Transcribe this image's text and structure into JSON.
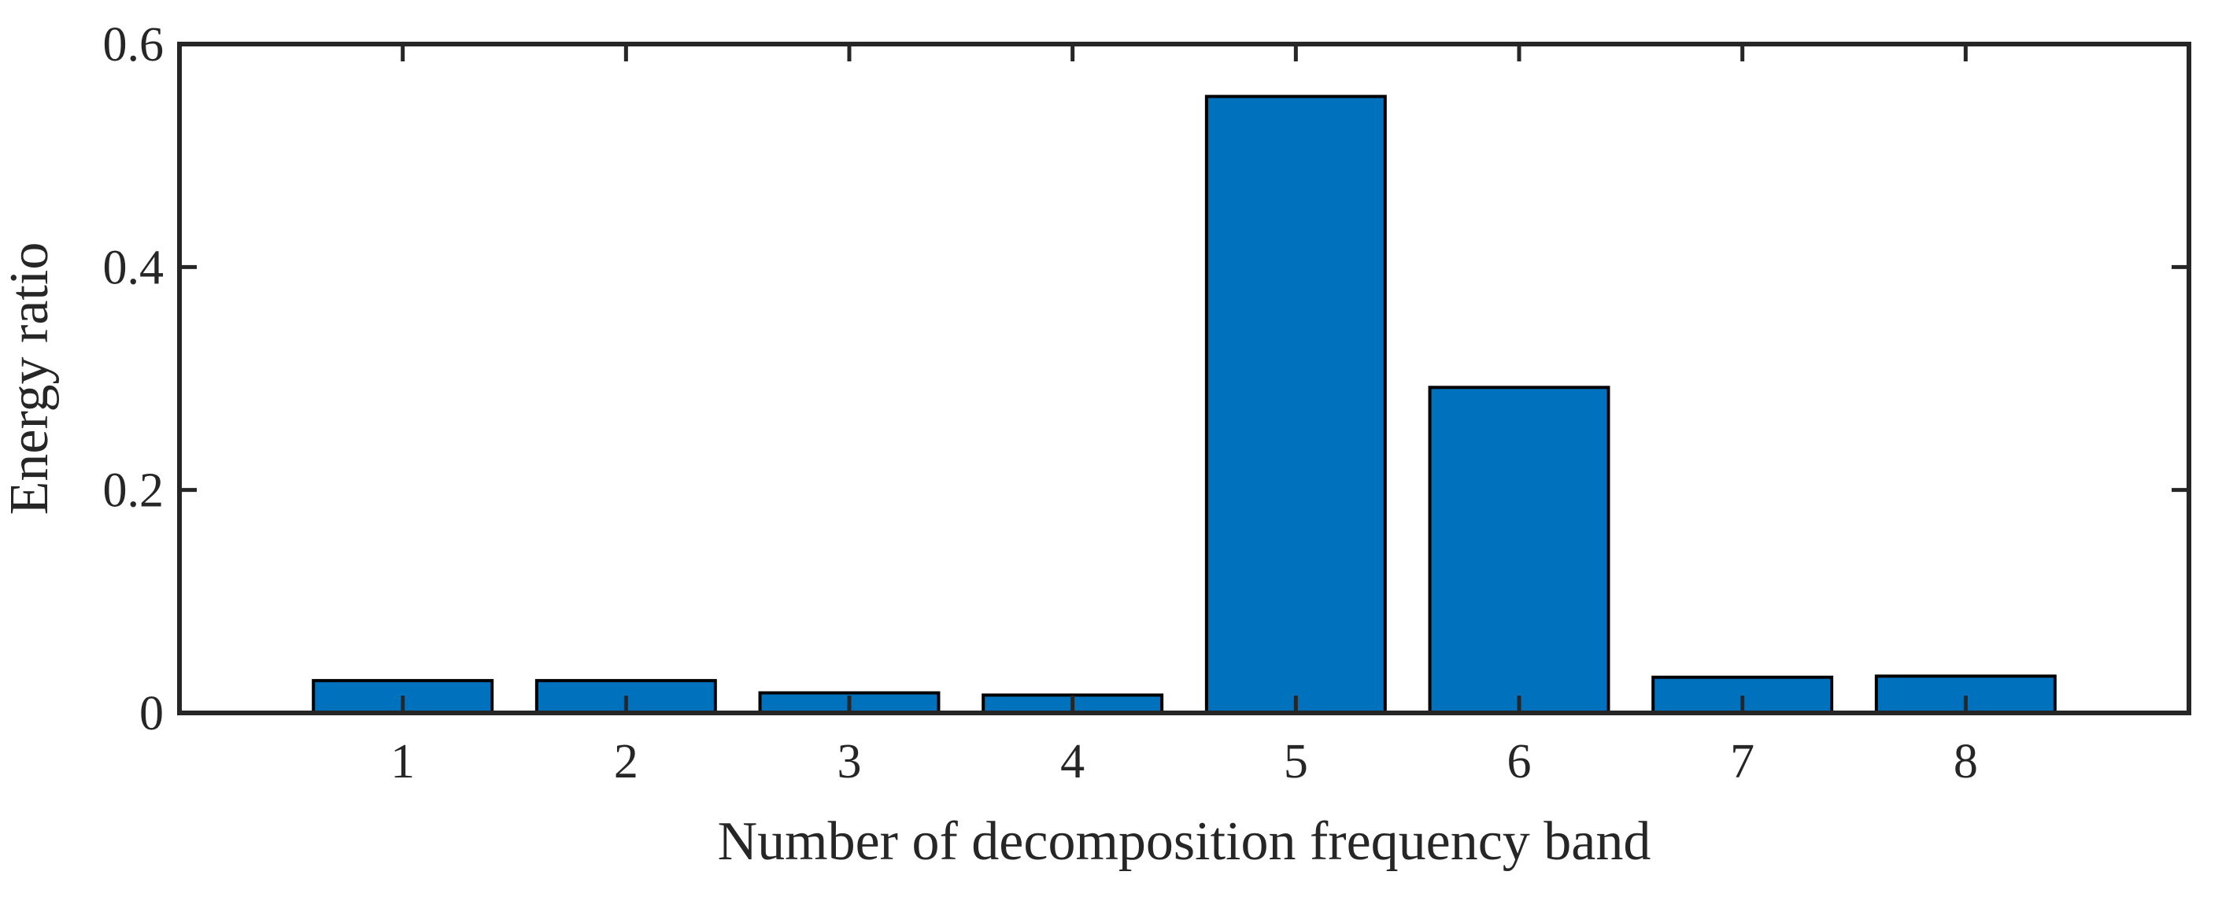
{
  "chart_data": {
    "type": "bar",
    "title": "",
    "xlabel": "Number of decomposition frequency band",
    "ylabel": "Energy ratio",
    "categories": [
      "1",
      "2",
      "3",
      "4",
      "5",
      "6",
      "7",
      "8"
    ],
    "values": [
      0.029,
      0.029,
      0.018,
      0.016,
      0.553,
      0.292,
      0.032,
      0.033
    ],
    "xlim": [
      0,
      9
    ],
    "ylim": [
      0,
      0.6
    ],
    "yticks": [
      0,
      0.2,
      0.4,
      0.6
    ],
    "ytick_labels": [
      "0",
      "0.2",
      "0.4",
      "0.6"
    ],
    "grid": false,
    "legend": "none",
    "bar_color": "#0072BD",
    "bar_edge_color": "#000000",
    "axis_color": "#262626"
  }
}
